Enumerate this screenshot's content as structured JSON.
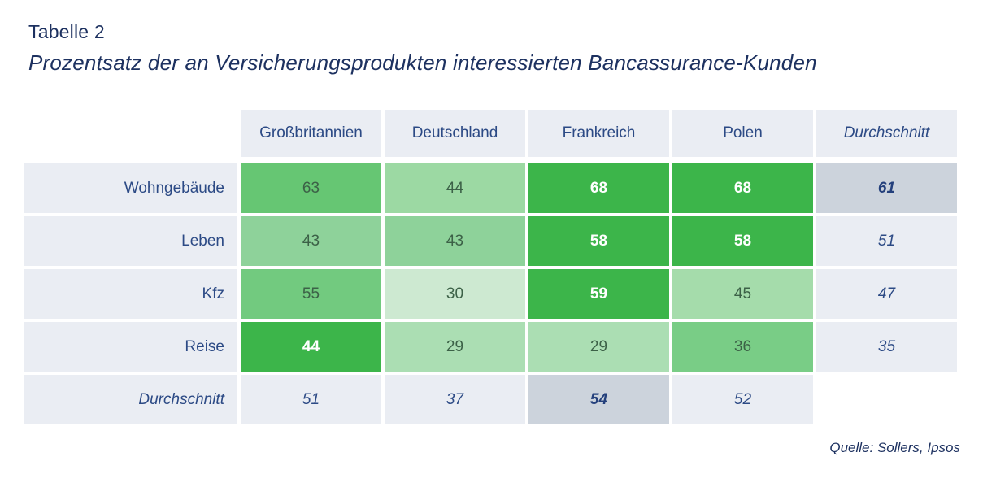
{
  "title": "Tabelle 2",
  "subtitle": "Prozentsatz der an Versicherungsprodukten interessierten Bancassurance-Kunden",
  "source": "Quelle: Sollers, Ipsos",
  "chart_data": {
    "type": "heatmap",
    "title": "Tabelle 2",
    "subtitle": "Prozentsatz der an Versicherungsprodukten interessierten Bancassurance-Kunden",
    "columns": [
      "Großbritannien",
      "Deutschland",
      "Frankreich",
      "Polen",
      "Durchschnitt"
    ],
    "rows": [
      "Wohngebäude",
      "Leben",
      "Kfz",
      "Reise",
      "Durchschnitt"
    ],
    "values": [
      [
        63,
        44,
        68,
        68,
        61
      ],
      [
        43,
        43,
        58,
        58,
        51
      ],
      [
        55,
        30,
        59,
        45,
        47
      ],
      [
        44,
        29,
        29,
        36,
        35
      ],
      [
        51,
        37,
        54,
        52,
        null
      ]
    ],
    "notes": "Row maxima shown bold white on saturated green; Durchschnitt column/row in gray-blue, maxima on darker gray"
  },
  "cell_styles": [
    [
      {
        "bg": "#66c673",
        "cls": "dark"
      },
      {
        "bg": "#9cd9a3",
        "cls": "dark"
      },
      {
        "bg": "#3cb54a",
        "cls": "max"
      },
      {
        "bg": "#3cb54a",
        "cls": "max"
      },
      {
        "bg": "#ccd3dc",
        "cls": "avg-strong"
      }
    ],
    [
      {
        "bg": "#8ed29a",
        "cls": "dark"
      },
      {
        "bg": "#8ed29a",
        "cls": "dark"
      },
      {
        "bg": "#3cb54a",
        "cls": "max"
      },
      {
        "bg": "#3cb54a",
        "cls": "max"
      },
      {
        "bg": "#eaedf3",
        "cls": "avg"
      }
    ],
    [
      {
        "bg": "#72ca7f",
        "cls": "dark"
      },
      {
        "bg": "#cde9d1",
        "cls": "dark"
      },
      {
        "bg": "#3cb54a",
        "cls": "max"
      },
      {
        "bg": "#a5dcab",
        "cls": "dark"
      },
      {
        "bg": "#eaedf3",
        "cls": "avg"
      }
    ],
    [
      {
        "bg": "#3cb54a",
        "cls": "max"
      },
      {
        "bg": "#abdeb3",
        "cls": "dark"
      },
      {
        "bg": "#abdeb3",
        "cls": "dark"
      },
      {
        "bg": "#79cd86",
        "cls": "dark"
      },
      {
        "bg": "#eaedf3",
        "cls": "avg"
      }
    ],
    [
      {
        "bg": "#eaedf3",
        "cls": "avg"
      },
      {
        "bg": "#eaedf3",
        "cls": "avg"
      },
      {
        "bg": "#ccd3dc",
        "cls": "avg-strong"
      },
      {
        "bg": "#eaedf3",
        "cls": "avg"
      },
      {
        "bg": "transparent",
        "cls": "empty"
      }
    ]
  ],
  "colors": {
    "navy_title": "#1d3160",
    "navy_label": "#2c4a85",
    "green_max": "#3cb54a",
    "gray_highlight": "#ccd3dc",
    "panel_light": "#eaedf3",
    "background": "#ffffff"
  }
}
